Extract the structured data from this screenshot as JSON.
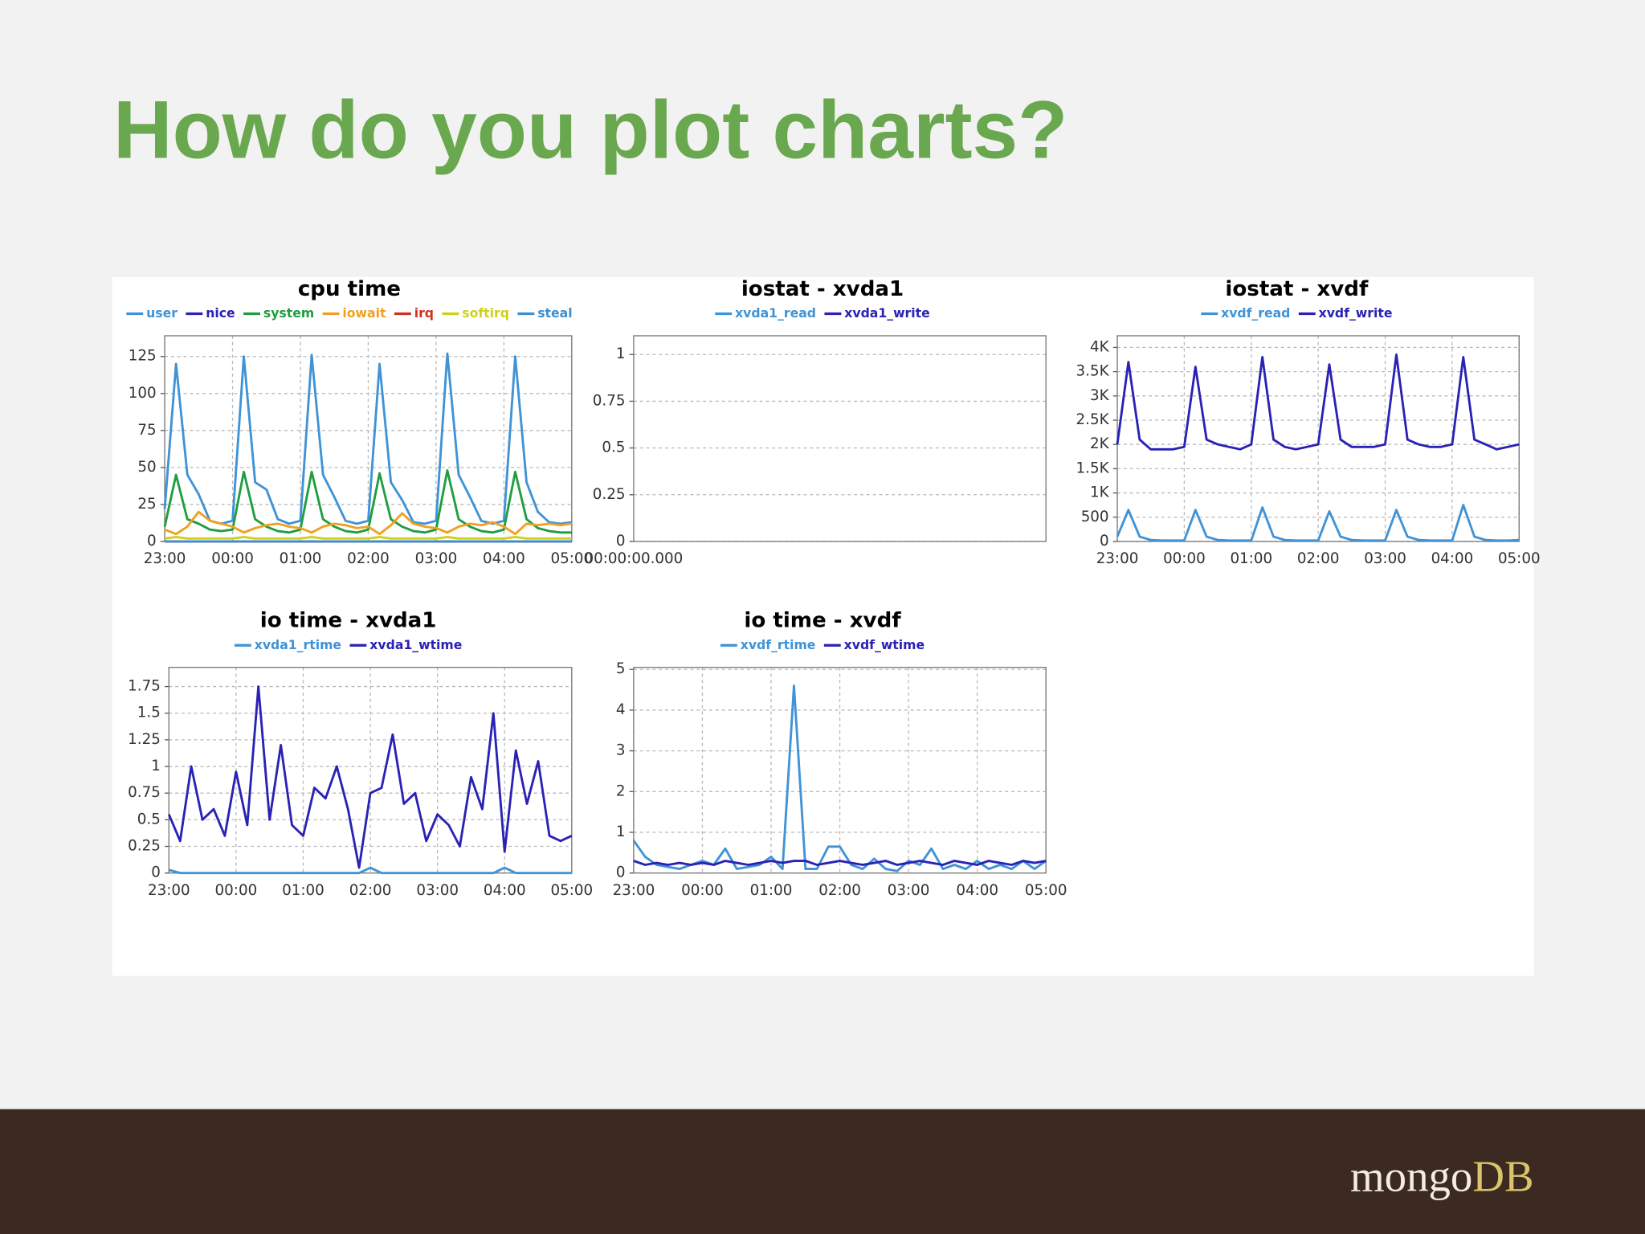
{
  "slide_title": "How do you plot charts?",
  "logo": {
    "name": "mongo",
    "accent": "DB"
  },
  "chart_data": [
    {
      "type": "line",
      "title": "cpu time",
      "categories": [
        "23:00",
        null,
        null,
        null,
        null,
        null,
        "00:00",
        null,
        null,
        null,
        null,
        null,
        "01:00",
        null,
        null,
        null,
        null,
        null,
        "02:00",
        null,
        null,
        null,
        null,
        null,
        "03:00",
        null,
        null,
        null,
        null,
        null,
        "04:00",
        null,
        null,
        null,
        null,
        null,
        "05:00"
      ],
      "ylim": [
        0,
        139
      ],
      "yticks": [
        0,
        25,
        50,
        75,
        100,
        125
      ],
      "grid": true,
      "series": [
        {
          "name": "user",
          "color": "#3f93d6",
          "values": [
            22,
            120,
            45,
            32,
            14,
            12,
            14,
            125,
            40,
            35,
            15,
            12,
            14,
            126,
            45,
            30,
            14,
            12,
            14,
            120,
            40,
            28,
            13,
            12,
            14,
            127,
            45,
            30,
            14,
            12,
            14,
            125,
            40,
            20,
            13,
            12,
            13
          ]
        },
        {
          "name": "nice",
          "color": "#2a22b4",
          "values": [
            0,
            0,
            0,
            0,
            0,
            0,
            0,
            0,
            0,
            0,
            0,
            0,
            0,
            0,
            0,
            0,
            0,
            0,
            0,
            0,
            0,
            0,
            0,
            0,
            0,
            0,
            0,
            0,
            0,
            0,
            0,
            0,
            0,
            0,
            0,
            0,
            0
          ]
        },
        {
          "name": "system",
          "color": "#1f9e3f",
          "values": [
            10,
            45,
            15,
            12,
            8,
            7,
            8,
            47,
            15,
            10,
            7,
            6,
            8,
            47,
            15,
            10,
            7,
            6,
            8,
            46,
            15,
            10,
            7,
            6,
            8,
            48,
            15,
            10,
            7,
            6,
            8,
            47,
            15,
            9,
            7,
            6,
            6
          ]
        },
        {
          "name": "iowait",
          "color": "#f0a020",
          "values": [
            8,
            5,
            10,
            20,
            14,
            12,
            10,
            6,
            9,
            11,
            12,
            10,
            9,
            6,
            10,
            12,
            11,
            9,
            10,
            5,
            11,
            19,
            12,
            10,
            9,
            6,
            10,
            12,
            11,
            13,
            10,
            5,
            12,
            11,
            12,
            11,
            12
          ]
        },
        {
          "name": "irq",
          "color": "#d0321e",
          "values": [
            0,
            0,
            0,
            0,
            0,
            0,
            0,
            0,
            0,
            0,
            0,
            0,
            0,
            0,
            0,
            0,
            0,
            0,
            0,
            0,
            0,
            0,
            0,
            0,
            0,
            0,
            0,
            0,
            0,
            0,
            0,
            0,
            0,
            0,
            0,
            0,
            0
          ]
        },
        {
          "name": "softirq",
          "color": "#cfcf1e",
          "values": [
            2,
            3,
            2,
            2,
            2,
            2,
            2,
            3,
            2,
            2,
            2,
            2,
            2,
            3,
            2,
            2,
            2,
            2,
            2,
            3,
            2,
            2,
            2,
            2,
            2,
            3,
            2,
            2,
            2,
            2,
            2,
            3,
            2,
            2,
            2,
            2,
            2
          ]
        },
        {
          "name": "steal",
          "color": "#3a8fd0",
          "values": [
            0,
            0,
            0,
            0,
            0,
            0,
            0,
            0,
            0,
            0,
            0,
            0,
            0,
            0,
            0,
            0,
            0,
            0,
            0,
            0,
            0,
            0,
            0,
            0,
            0,
            0,
            0,
            0,
            0,
            0,
            0,
            0,
            0,
            0,
            0,
            0,
            0
          ]
        }
      ]
    },
    {
      "type": "line",
      "title": "iostat - xvda1",
      "categories": [
        "00:00:00.000"
      ],
      "ylim": [
        0,
        1.1
      ],
      "yticks": [
        0,
        0.25,
        0.5,
        0.75,
        1
      ],
      "grid": true,
      "series": [
        {
          "name": "xvda1_read",
          "color": "#3f93d6",
          "values": [
            null
          ]
        },
        {
          "name": "xvda1_write",
          "color": "#2a22b4",
          "values": [
            null
          ]
        }
      ]
    },
    {
      "type": "line",
      "title": "iostat - xvdf",
      "categories": [
        "23:00",
        null,
        null,
        null,
        null,
        null,
        "00:00",
        null,
        null,
        null,
        null,
        null,
        "01:00",
        null,
        null,
        null,
        null,
        null,
        "02:00",
        null,
        null,
        null,
        null,
        null,
        "03:00",
        null,
        null,
        null,
        null,
        null,
        "04:00",
        null,
        null,
        null,
        null,
        null,
        "05:00"
      ],
      "ylim": [
        0,
        4240
      ],
      "yticks": [
        0,
        500,
        {
          "value": 1000,
          "label": "1K"
        },
        {
          "value": 1500,
          "label": "1.5K"
        },
        {
          "value": 2000,
          "label": "2K"
        },
        {
          "value": 2500,
          "label": "2.5K"
        },
        {
          "value": 3000,
          "label": "3K"
        },
        {
          "value": 3500,
          "label": "3.5K"
        },
        {
          "value": 4000,
          "label": "4K"
        }
      ],
      "grid": true,
      "series": [
        {
          "name": "xvdf_read",
          "color": "#3f93d6",
          "values": [
            100,
            650,
            100,
            30,
            20,
            20,
            20,
            650,
            100,
            30,
            20,
            20,
            20,
            700,
            100,
            30,
            20,
            20,
            20,
            620,
            100,
            30,
            20,
            20,
            20,
            650,
            100,
            30,
            20,
            20,
            20,
            750,
            100,
            30,
            20,
            20,
            30
          ]
        },
        {
          "name": "xvdf_write",
          "color": "#2a22b4",
          "values": [
            2000,
            3700,
            2100,
            1900,
            1900,
            1900,
            1950,
            3600,
            2100,
            2000,
            1950,
            1900,
            2000,
            3800,
            2100,
            1950,
            1900,
            1950,
            2000,
            3650,
            2100,
            1950,
            1950,
            1950,
            2000,
            3850,
            2100,
            2000,
            1950,
            1950,
            2000,
            3800,
            2100,
            2000,
            1900,
            1950,
            2000
          ]
        }
      ]
    },
    {
      "type": "line",
      "title": "io time - xvda1",
      "categories": [
        "23:00",
        null,
        null,
        null,
        null,
        null,
        "00:00",
        null,
        null,
        null,
        null,
        null,
        "01:00",
        null,
        null,
        null,
        null,
        null,
        "02:00",
        null,
        null,
        null,
        null,
        null,
        "03:00",
        null,
        null,
        null,
        null,
        null,
        "04:00",
        null,
        null,
        null,
        null,
        null,
        "05:00"
      ],
      "ylim": [
        0,
        1.93
      ],
      "yticks": [
        0,
        0.25,
        0.5,
        0.75,
        1,
        1.25,
        1.5,
        1.75
      ],
      "grid": true,
      "series": [
        {
          "name": "xvda1_rtime",
          "color": "#3f93d6",
          "values": [
            0.03,
            0,
            0,
            0,
            0,
            0,
            0,
            0,
            0,
            0,
            0,
            0,
            0,
            0,
            0,
            0,
            0,
            0,
            0.05,
            0,
            0,
            0,
            0,
            0,
            0,
            0,
            0,
            0,
            0,
            0,
            0.05,
            0,
            0,
            0,
            0,
            0,
            0
          ]
        },
        {
          "name": "xvda1_wtime",
          "color": "#2a22b4",
          "values": [
            0.55,
            0.3,
            1.0,
            0.5,
            0.6,
            0.35,
            0.95,
            0.45,
            1.75,
            0.5,
            1.2,
            0.45,
            0.35,
            0.8,
            0.7,
            1.0,
            0.6,
            0.05,
            0.75,
            0.8,
            1.3,
            0.65,
            0.75,
            0.3,
            0.55,
            0.45,
            0.25,
            0.9,
            0.6,
            1.5,
            0.2,
            1.15,
            0.65,
            1.05,
            0.35,
            0.3,
            0.35
          ]
        }
      ]
    },
    {
      "type": "line",
      "title": "io time - xvdf",
      "categories": [
        "23:00",
        null,
        null,
        null,
        null,
        null,
        "00:00",
        null,
        null,
        null,
        null,
        null,
        "01:00",
        null,
        null,
        null,
        null,
        null,
        "02:00",
        null,
        null,
        null,
        null,
        null,
        "03:00",
        null,
        null,
        null,
        null,
        null,
        "04:00",
        null,
        null,
        null,
        null,
        null,
        "05:00"
      ],
      "ylim": [
        0,
        5.05
      ],
      "yticks": [
        0,
        1,
        2,
        3,
        4,
        5
      ],
      "grid": true,
      "series": [
        {
          "name": "xvdf_rtime",
          "color": "#3f93d6",
          "values": [
            0.8,
            0.4,
            0.2,
            0.15,
            0.1,
            0.2,
            0.3,
            0.2,
            0.6,
            0.1,
            0.15,
            0.2,
            0.4,
            0.1,
            4.6,
            0.1,
            0.1,
            0.65,
            0.65,
            0.2,
            0.1,
            0.35,
            0.1,
            0.05,
            0.3,
            0.2,
            0.6,
            0.1,
            0.2,
            0.1,
            0.3,
            0.1,
            0.2,
            0.1,
            0.3,
            0.1,
            0.3
          ]
        },
        {
          "name": "xvdf_wtime",
          "color": "#2a22b4",
          "values": [
            0.3,
            0.2,
            0.25,
            0.2,
            0.25,
            0.2,
            0.25,
            0.2,
            0.3,
            0.25,
            0.2,
            0.25,
            0.3,
            0.25,
            0.3,
            0.3,
            0.2,
            0.25,
            0.3,
            0.25,
            0.2,
            0.25,
            0.3,
            0.2,
            0.25,
            0.3,
            0.25,
            0.2,
            0.3,
            0.25,
            0.2,
            0.3,
            0.25,
            0.2,
            0.3,
            0.25,
            0.3
          ]
        }
      ]
    }
  ]
}
